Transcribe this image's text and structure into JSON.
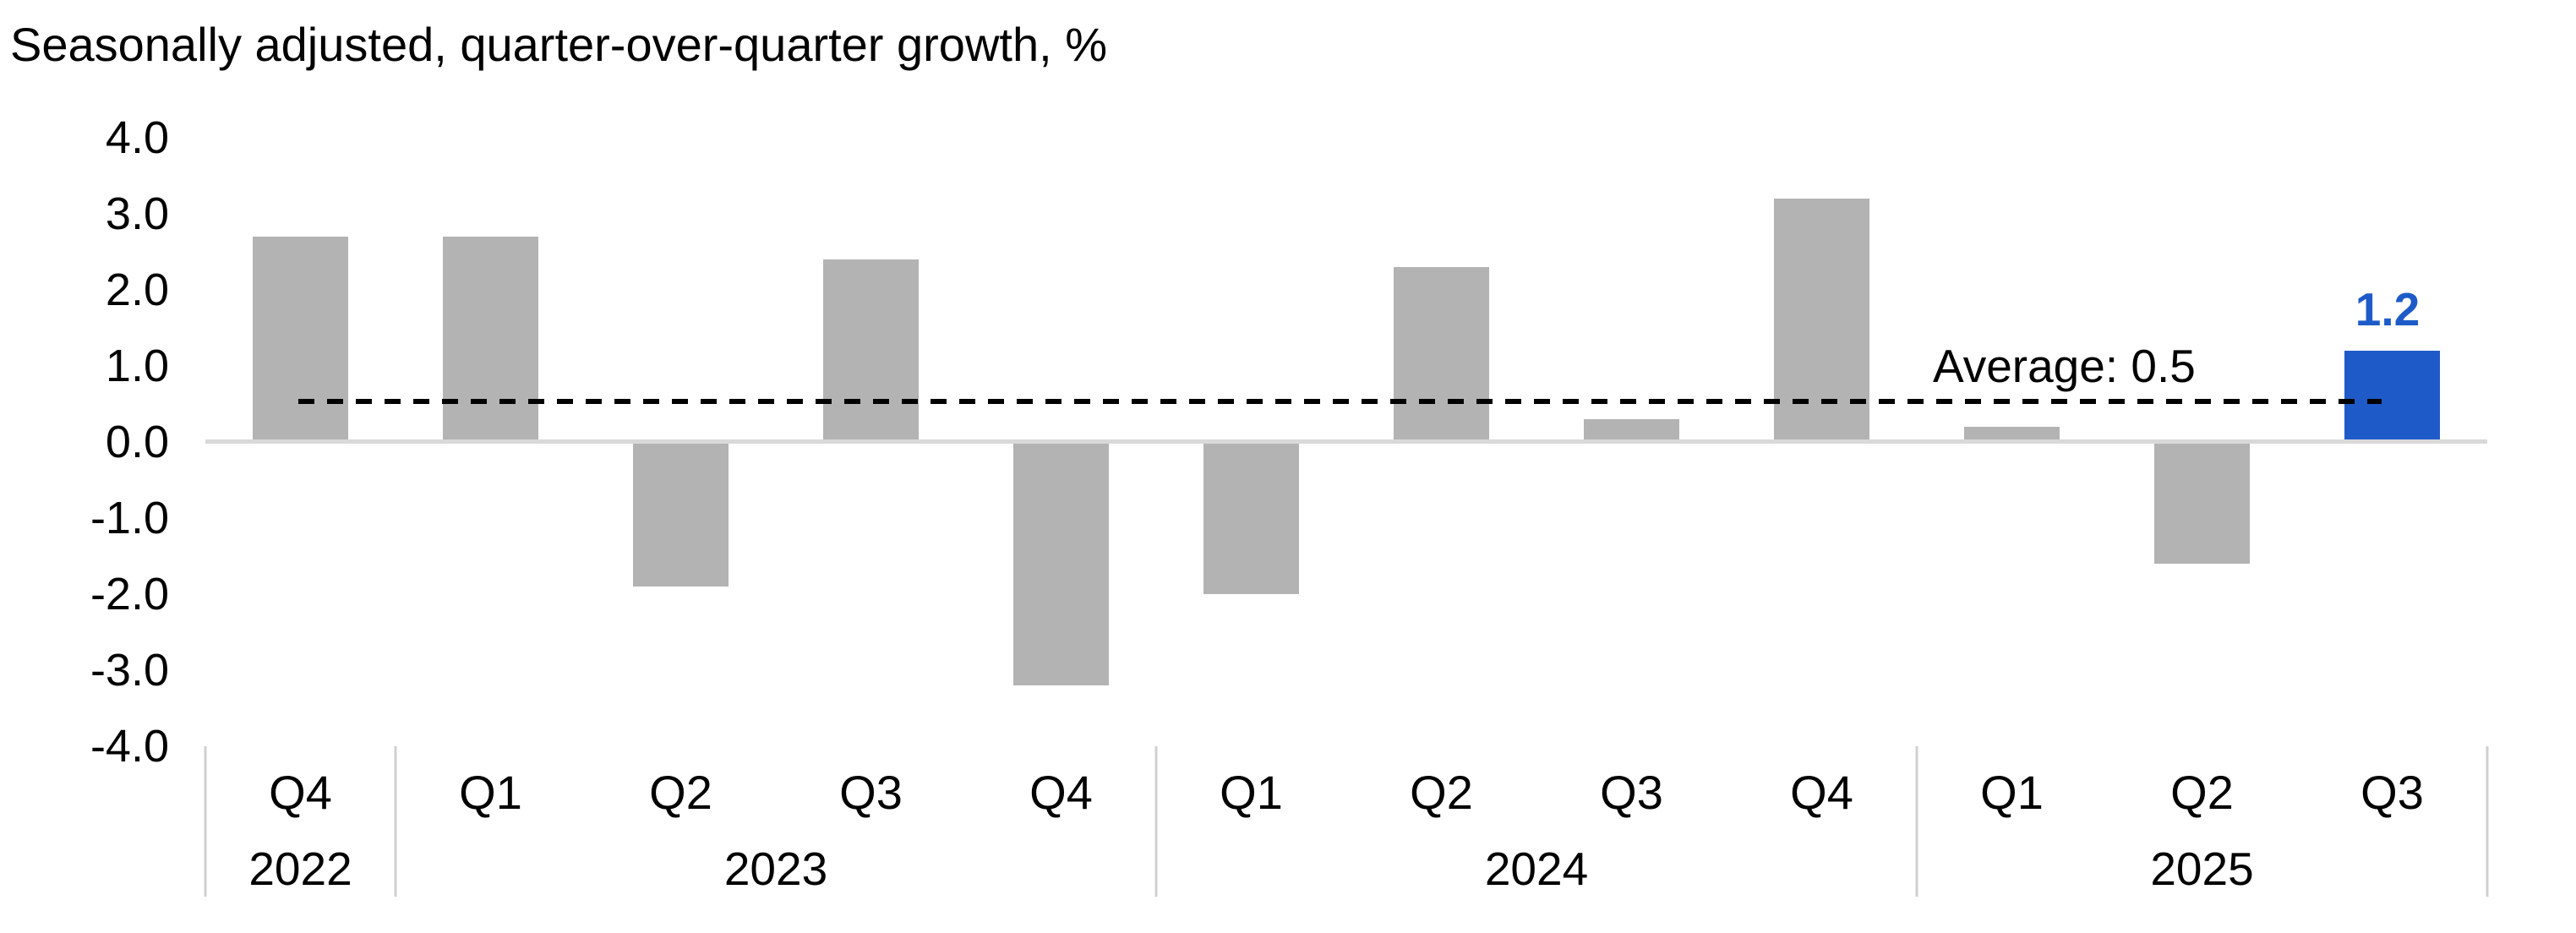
{
  "chart_data": {
    "type": "bar",
    "title": "Seasonally adjusted, quarter-over-quarter growth, %",
    "categories": [
      "Q4",
      "Q1",
      "Q2",
      "Q3",
      "Q4",
      "Q1",
      "Q2",
      "Q3",
      "Q4",
      "Q1",
      "Q2",
      "Q3"
    ],
    "year_groups": [
      {
        "label": "2022",
        "count": 1
      },
      {
        "label": "2023",
        "count": 4
      },
      {
        "label": "2024",
        "count": 4
      },
      {
        "label": "2025",
        "count": 3
      }
    ],
    "values": [
      2.7,
      2.7,
      -1.9,
      2.4,
      -3.2,
      -2.0,
      2.3,
      0.3,
      3.2,
      0.2,
      -1.6,
      1.2
    ],
    "highlight_index": 11,
    "highlight_label": "1.2",
    "average_value": 0.5,
    "average_label": "Average:  0.5",
    "ylim": [
      -4.0,
      4.0
    ],
    "yticks": [
      "4.0",
      "3.0",
      "2.0",
      "1.0",
      "0.0",
      "-1.0",
      "-2.0",
      "-3.0",
      "-4.0"
    ],
    "grid": false,
    "legend": false,
    "colors": {
      "bar": "#b3b3b3",
      "highlight": "#1e5bc8",
      "baseline": "#d9d9d9",
      "separator": "#d0d0d0",
      "average_dash": "#000000",
      "text": "#000000"
    }
  }
}
